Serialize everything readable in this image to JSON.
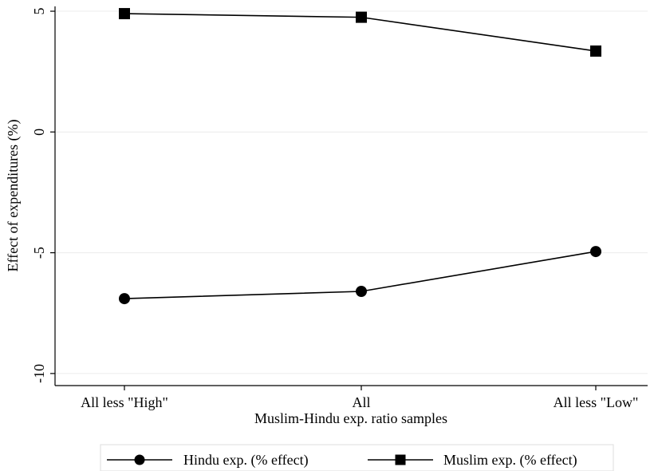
{
  "chart_data": {
    "type": "line",
    "title": "",
    "xlabel": "Muslim-Hindu exp. ratio samples",
    "ylabel": "Effect of expenditures (%)",
    "categories": [
      "All less \"High\"",
      "All",
      "All less \"Low\""
    ],
    "ylim": [
      -10.5,
      5.2
    ],
    "yticks": [
      5,
      0,
      -5,
      -10
    ],
    "ytick_labels": [
      "5",
      "0",
      "-5",
      "-10"
    ],
    "grid": true,
    "legend_position": "bottom",
    "series": [
      {
        "name": "Hindu exp. (% effect)",
        "marker": "circle",
        "color": "#000000",
        "values": [
          -6.9,
          -6.6,
          -4.95
        ]
      },
      {
        "name": "Muslim exp. (% effect)",
        "marker": "square",
        "color": "#000000",
        "values": [
          4.9,
          4.75,
          3.35
        ]
      }
    ]
  }
}
